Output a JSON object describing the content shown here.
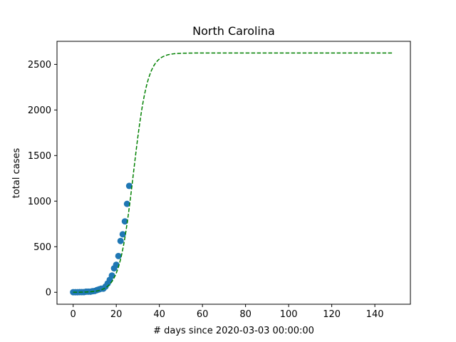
{
  "chart_data": {
    "type": "scatter",
    "title": "North Carolina",
    "xlabel": "# days since 2020-03-03 00:00:00",
    "ylabel": "total cases",
    "xlim": [
      -7.5,
      156.5
    ],
    "ylim": [
      -131,
      2753
    ],
    "xticks": [
      0,
      20,
      40,
      60,
      80,
      100,
      120,
      140
    ],
    "yticks": [
      0,
      500,
      1000,
      1500,
      2000,
      2500
    ],
    "grid": false,
    "series": [
      {
        "kind": "scatter",
        "color": "#1f77b4",
        "x": [
          0,
          1,
          2,
          3,
          4,
          5,
          6,
          7,
          8,
          9,
          10,
          11,
          12,
          13,
          14,
          15,
          16,
          17,
          18,
          19,
          20,
          21,
          22,
          23,
          24,
          25,
          26
        ],
        "y": [
          1,
          1,
          1,
          2,
          2,
          2,
          7,
          7,
          7,
          12,
          15,
          24,
          32,
          40,
          40,
          63,
          97,
          137,
          184,
          263,
          302,
          398,
          563,
          636,
          778,
          970,
          1167
        ]
      },
      {
        "kind": "line",
        "style": "dashed",
        "color": "#008000",
        "logistic": {
          "L": 2625,
          "k": 0.305,
          "x0": 28
        },
        "x_range": [
          0,
          148
        ]
      }
    ]
  }
}
